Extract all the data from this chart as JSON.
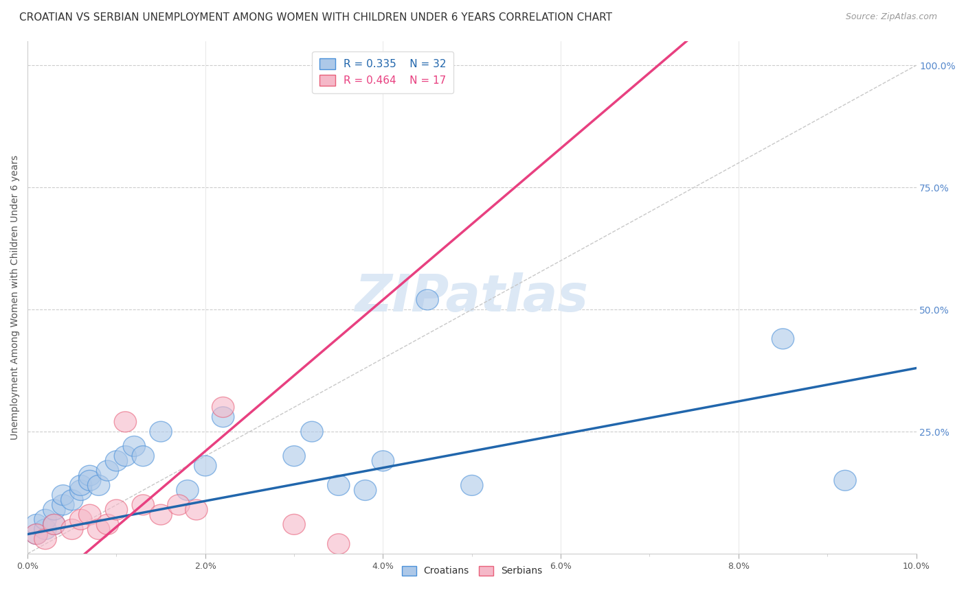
{
  "title": "CROATIAN VS SERBIAN UNEMPLOYMENT AMONG WOMEN WITH CHILDREN UNDER 6 YEARS CORRELATION CHART",
  "source": "Source: ZipAtlas.com",
  "ylabel": "Unemployment Among Women with Children Under 6 years",
  "xlim": [
    0.0,
    0.1
  ],
  "ylim": [
    0.0,
    1.05
  ],
  "xtick_positions": [
    0.0,
    0.02,
    0.04,
    0.06,
    0.08,
    0.1
  ],
  "xtick_labels": [
    "0.0%",
    "2.0%",
    "4.0%",
    "6.0%",
    "8.0%",
    "10.0%"
  ],
  "ytick_positions": [
    0.0,
    0.25,
    0.5,
    0.75,
    1.0
  ],
  "ytick_labels_right": [
    "",
    "25.0%",
    "50.0%",
    "75.0%",
    "100.0%"
  ],
  "croatians_x": [
    0.001,
    0.001,
    0.002,
    0.002,
    0.003,
    0.003,
    0.004,
    0.004,
    0.005,
    0.006,
    0.006,
    0.007,
    0.007,
    0.008,
    0.009,
    0.01,
    0.011,
    0.012,
    0.013,
    0.015,
    0.018,
    0.02,
    0.022,
    0.03,
    0.032,
    0.035,
    0.038,
    0.04,
    0.045,
    0.05,
    0.085,
    0.092
  ],
  "croatians_y": [
    0.04,
    0.06,
    0.05,
    0.07,
    0.06,
    0.09,
    0.1,
    0.12,
    0.11,
    0.13,
    0.14,
    0.16,
    0.15,
    0.14,
    0.17,
    0.19,
    0.2,
    0.22,
    0.2,
    0.25,
    0.13,
    0.18,
    0.28,
    0.2,
    0.25,
    0.14,
    0.13,
    0.19,
    0.52,
    0.14,
    0.44,
    0.15
  ],
  "serbians_x": [
    0.001,
    0.002,
    0.003,
    0.005,
    0.006,
    0.007,
    0.008,
    0.009,
    0.01,
    0.011,
    0.013,
    0.015,
    0.017,
    0.019,
    0.022,
    0.03,
    0.035
  ],
  "serbians_y": [
    0.04,
    0.03,
    0.06,
    0.05,
    0.07,
    0.08,
    0.05,
    0.06,
    0.09,
    0.27,
    0.1,
    0.08,
    0.1,
    0.09,
    0.3,
    0.06,
    0.02
  ],
  "blue_fill": "#adc8e8",
  "blue_edge": "#4a90d9",
  "pink_fill": "#f5b8c8",
  "pink_edge": "#e8607a",
  "blue_line": "#2166ac",
  "pink_line": "#e84080",
  "diagonal_color": "#c8c8c8",
  "watermark_text": "ZIPatlas",
  "watermark_color": "#dce8f5",
  "legend_R_croatian": "R = 0.335",
  "legend_N_croatian": "N = 32",
  "legend_R_serbian": "R = 0.464",
  "legend_N_serbian": "N = 17",
  "title_fontsize": 11,
  "source_fontsize": 9,
  "ylabel_fontsize": 10
}
